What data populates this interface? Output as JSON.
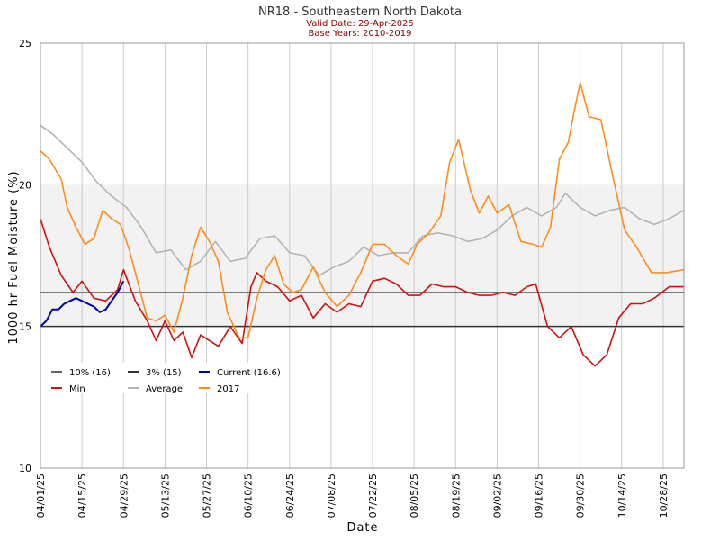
{
  "chart_data": {
    "type": "line",
    "title": "NR18 - Southeastern North Dakota",
    "subtitle_lines": [
      "Valid Date: 29-Apr-2025",
      "Base Years: 2010-2019"
    ],
    "xlabel": "Date",
    "ylabel": "1000 hr Fuel Moisture (%)",
    "ylim": [
      10,
      25
    ],
    "y_ticks": [
      "10",
      "15",
      "20",
      "25"
    ],
    "x_range": [
      "2025-04-01",
      "2025-11-04"
    ],
    "x_tick_labels": [
      "04/01/25",
      "04/15/25",
      "04/29/25",
      "05/13/25",
      "05/27/25",
      "06/10/25",
      "06/24/25",
      "07/08/25",
      "07/22/25",
      "08/05/25",
      "08/19/25",
      "09/02/25",
      "09/16/25",
      "09/30/25",
      "10/14/25",
      "10/28/25"
    ],
    "grid": "vertical lines at every tick",
    "shaded_band": {
      "y0": 15,
      "y1": 20,
      "color": "#f2f2f2"
    },
    "threshold_lines": [
      {
        "name": "10% (16)",
        "value": 16.2,
        "color": "#666666"
      },
      {
        "name": "3% (15)",
        "value": 15.0,
        "color": "#333333"
      }
    ],
    "legend_position": "lower-left",
    "legend": [
      "10% (16)",
      "3% (15)",
      "Current (16.6)",
      "Min",
      "Average",
      "2017"
    ],
    "series": [
      {
        "name": "Average",
        "color": "#b3b3b3",
        "x": [
          "2025-04-01",
          "2025-04-05",
          "2025-04-10",
          "2025-04-15",
          "2025-04-20",
          "2025-04-25",
          "2025-04-30",
          "2025-05-05",
          "2025-05-10",
          "2025-05-15",
          "2025-05-20",
          "2025-05-25",
          "2025-05-30",
          "2025-06-04",
          "2025-06-09",
          "2025-06-14",
          "2025-06-19",
          "2025-06-24",
          "2025-06-29",
          "2025-07-04",
          "2025-07-09",
          "2025-07-14",
          "2025-07-19",
          "2025-07-24",
          "2025-07-29",
          "2025-08-03",
          "2025-08-08",
          "2025-08-13",
          "2025-08-18",
          "2025-08-23",
          "2025-08-28",
          "2025-09-02",
          "2025-09-07",
          "2025-09-12",
          "2025-09-17",
          "2025-09-22",
          "2025-09-25",
          "2025-09-30",
          "2025-10-05",
          "2025-10-10",
          "2025-10-15",
          "2025-10-20",
          "2025-10-25",
          "2025-10-30",
          "2025-11-04"
        ],
        "values": [
          22.1,
          21.8,
          21.3,
          20.8,
          20.1,
          19.6,
          19.2,
          18.5,
          17.6,
          17.7,
          17.0,
          17.3,
          18.0,
          17.3,
          17.4,
          18.1,
          18.2,
          17.6,
          17.5,
          16.8,
          17.1,
          17.3,
          17.8,
          17.5,
          17.6,
          17.6,
          18.2,
          18.3,
          18.2,
          18.0,
          18.1,
          18.4,
          18.9,
          19.2,
          18.9,
          19.2,
          19.7,
          19.2,
          18.9,
          19.1,
          19.2,
          18.8,
          18.6,
          18.8,
          19.1
        ]
      },
      {
        "name": "Min",
        "color": "#cc1111",
        "x": [
          "2025-04-01",
          "2025-04-04",
          "2025-04-08",
          "2025-04-12",
          "2025-04-15",
          "2025-04-19",
          "2025-04-23",
          "2025-04-27",
          "2025-04-29",
          "2025-05-03",
          "2025-05-07",
          "2025-05-10",
          "2025-05-13",
          "2025-05-16",
          "2025-05-19",
          "2025-05-22",
          "2025-05-25",
          "2025-05-28",
          "2025-05-31",
          "2025-06-04",
          "2025-06-08",
          "2025-06-11",
          "2025-06-13",
          "2025-06-16",
          "2025-06-20",
          "2025-06-24",
          "2025-06-28",
          "2025-07-02",
          "2025-07-06",
          "2025-07-10",
          "2025-07-14",
          "2025-07-18",
          "2025-07-22",
          "2025-07-26",
          "2025-07-30",
          "2025-08-03",
          "2025-08-07",
          "2025-08-11",
          "2025-08-15",
          "2025-08-19",
          "2025-08-23",
          "2025-08-27",
          "2025-08-31",
          "2025-09-04",
          "2025-09-08",
          "2025-09-12",
          "2025-09-15",
          "2025-09-19",
          "2025-09-23",
          "2025-09-27",
          "2025-10-01",
          "2025-10-05",
          "2025-10-09",
          "2025-10-13",
          "2025-10-17",
          "2025-10-21",
          "2025-10-25",
          "2025-10-30",
          "2025-11-04"
        ],
        "values": [
          18.8,
          17.8,
          16.8,
          16.2,
          16.6,
          16.0,
          15.9,
          16.3,
          17.0,
          15.9,
          15.2,
          14.5,
          15.2,
          14.5,
          14.8,
          13.9,
          14.7,
          14.5,
          14.3,
          15.0,
          14.4,
          16.4,
          16.9,
          16.6,
          16.4,
          15.9,
          16.1,
          15.3,
          15.8,
          15.5,
          15.8,
          15.7,
          16.6,
          16.7,
          16.5,
          16.1,
          16.1,
          16.5,
          16.4,
          16.4,
          16.2,
          16.1,
          16.1,
          16.2,
          16.1,
          16.4,
          16.5,
          15.0,
          14.6,
          15.0,
          14.0,
          13.6,
          14.0,
          15.3,
          15.8,
          15.8,
          16.0,
          16.4,
          16.4
        ]
      },
      {
        "name": "2017",
        "color": "#ff8c1a",
        "x": [
          "2025-04-01",
          "2025-04-04",
          "2025-04-08",
          "2025-04-10",
          "2025-04-13",
          "2025-04-16",
          "2025-04-19",
          "2025-04-22",
          "2025-04-25",
          "2025-04-28",
          "2025-05-01",
          "2025-05-04",
          "2025-05-07",
          "2025-05-10",
          "2025-05-13",
          "2025-05-16",
          "2025-05-19",
          "2025-05-22",
          "2025-05-25",
          "2025-05-28",
          "2025-05-31",
          "2025-06-03",
          "2025-06-07",
          "2025-06-10",
          "2025-06-13",
          "2025-06-16",
          "2025-06-19",
          "2025-06-22",
          "2025-06-25",
          "2025-06-28",
          "2025-07-02",
          "2025-07-06",
          "2025-07-10",
          "2025-07-14",
          "2025-07-18",
          "2025-07-22",
          "2025-07-26",
          "2025-07-30",
          "2025-08-03",
          "2025-08-06",
          "2025-08-10",
          "2025-08-14",
          "2025-08-17",
          "2025-08-20",
          "2025-08-24",
          "2025-08-27",
          "2025-08-30",
          "2025-09-02",
          "2025-09-06",
          "2025-09-10",
          "2025-09-14",
          "2025-09-17",
          "2025-09-20",
          "2025-09-23",
          "2025-09-26",
          "2025-09-28",
          "2025-09-30",
          "2025-10-03",
          "2025-10-07",
          "2025-10-11",
          "2025-10-15",
          "2025-10-19",
          "2025-10-24",
          "2025-10-29",
          "2025-11-04"
        ],
        "values": [
          21.2,
          20.9,
          20.2,
          19.2,
          18.5,
          17.9,
          18.1,
          19.1,
          18.8,
          18.6,
          17.7,
          16.5,
          15.3,
          15.2,
          15.4,
          14.8,
          16.0,
          17.5,
          18.5,
          18.0,
          17.3,
          15.5,
          14.6,
          14.6,
          16.0,
          17.0,
          17.5,
          16.5,
          16.2,
          16.3,
          17.1,
          16.2,
          15.7,
          16.1,
          16.9,
          17.9,
          17.9,
          17.5,
          17.2,
          17.9,
          18.3,
          18.9,
          20.8,
          21.6,
          19.8,
          19.0,
          19.6,
          19.0,
          19.3,
          18.0,
          17.9,
          17.8,
          18.5,
          20.9,
          21.5,
          22.6,
          23.6,
          22.4,
          22.3,
          20.3,
          18.4,
          17.8,
          16.9,
          16.9,
          17.0
        ]
      },
      {
        "name": "Current (16.6)",
        "color": "#0000aa",
        "x": [
          "2025-04-01",
          "2025-04-03",
          "2025-04-05",
          "2025-04-07",
          "2025-04-09",
          "2025-04-11",
          "2025-04-13",
          "2025-04-15",
          "2025-04-17",
          "2025-04-19",
          "2025-04-21",
          "2025-04-23",
          "2025-04-25",
          "2025-04-27",
          "2025-04-29"
        ],
        "values": [
          15.0,
          15.2,
          15.6,
          15.6,
          15.8,
          15.9,
          16.0,
          15.9,
          15.8,
          15.7,
          15.5,
          15.6,
          15.9,
          16.2,
          16.6
        ]
      }
    ]
  }
}
